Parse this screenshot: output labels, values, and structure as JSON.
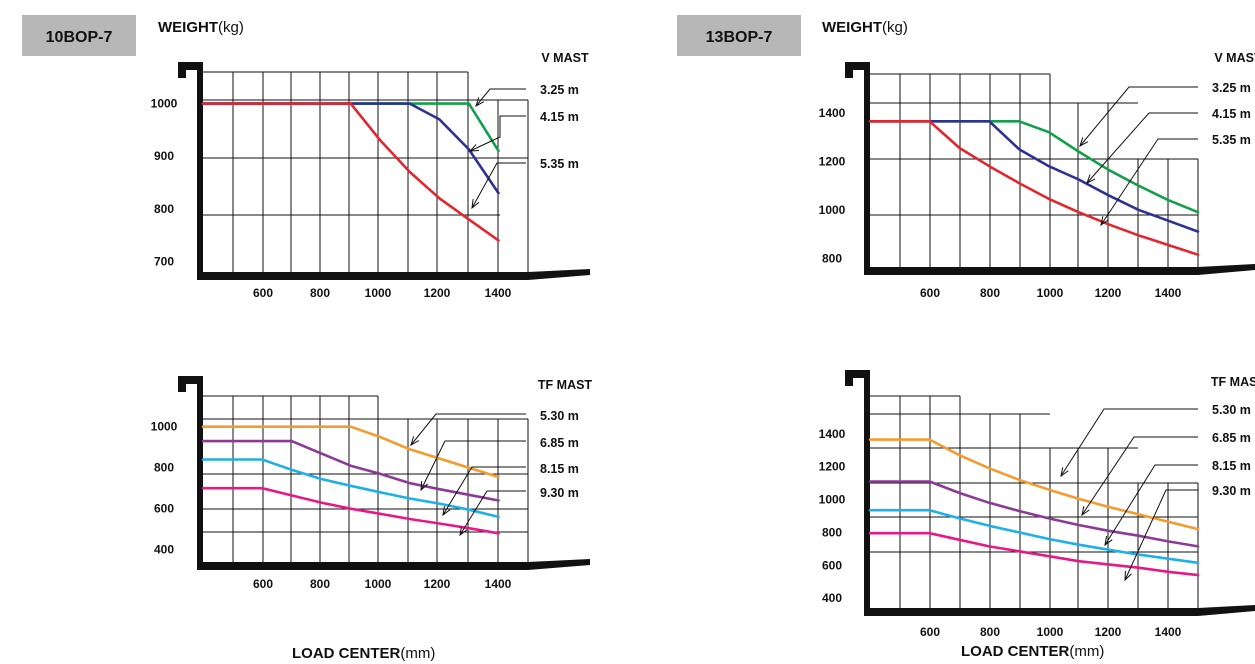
{
  "colors": {
    "frame": "#111111",
    "badge": "#b7b7b7",
    "red": "#e3262e",
    "navy": "#2e3192",
    "green": "#12a04a",
    "orange": "#f59b2e",
    "purple": "#8b3a96",
    "cyan": "#1fb0e8",
    "magenta": "#e6198a"
  },
  "models": [
    {
      "badge": "10BOP-7",
      "weight_title": "WEIGHT",
      "weight_unit": "(kg)",
      "load_title": "LOAD CENTER",
      "load_unit": "(mm)"
    },
    {
      "badge": "13BOP-7",
      "weight_title": "WEIGHT",
      "weight_unit": "(kg)",
      "load_title": "LOAD CENTER",
      "load_unit": "(mm)"
    }
  ],
  "chart_data": [
    {
      "type": "line",
      "model": "10BOP-7",
      "legend_title": "V MAST",
      "xlabel": "LOAD CENTER (mm)",
      "ylabel": "WEIGHT (kg)",
      "x_ticks": [
        "600",
        "800",
        "1000",
        "1200",
        "1400"
      ],
      "y_ticks": [
        "700",
        "800",
        "900",
        "1000"
      ],
      "xlim": [
        400,
        1500
      ],
      "ylim": [
        680,
        1060
      ],
      "series": [
        {
          "name": "3.25 m",
          "color": "green",
          "points": [
            [
              400,
              1000
            ],
            [
              1300,
              1000
            ],
            [
              1400,
              910
            ]
          ]
        },
        {
          "name": "4.15 m",
          "color": "navy",
          "points": [
            [
              400,
              1000
            ],
            [
              1100,
              1000
            ],
            [
              1200,
              970
            ],
            [
              1300,
              913
            ],
            [
              1400,
              830
            ]
          ]
        },
        {
          "name": "5.35 m",
          "color": "red",
          "points": [
            [
              400,
              1000
            ],
            [
              900,
              1000
            ],
            [
              1000,
              930
            ],
            [
              1100,
              870
            ],
            [
              1200,
              820
            ],
            [
              1300,
              780
            ],
            [
              1400,
              740
            ]
          ]
        }
      ]
    },
    {
      "type": "line",
      "model": "10BOP-7",
      "legend_title": "TF MAST",
      "xlabel": "LOAD CENTER (mm)",
      "ylabel": "WEIGHT (kg)",
      "x_ticks": [
        "600",
        "800",
        "1000",
        "1200",
        "1400"
      ],
      "y_ticks": [
        "400",
        "600",
        "800",
        "1000"
      ],
      "xlim": [
        400,
        1500
      ],
      "ylim": [
        340,
        1150
      ],
      "series": [
        {
          "name": "5.30 m",
          "color": "orange",
          "points": [
            [
              400,
              1000
            ],
            [
              900,
              1000
            ],
            [
              1000,
              950
            ],
            [
              1100,
              890
            ],
            [
              1200,
              845
            ],
            [
              1300,
              800
            ],
            [
              1400,
              755
            ]
          ]
        },
        {
          "name": "6.85 m",
          "color": "purple",
          "points": [
            [
              400,
              930
            ],
            [
              700,
              930
            ],
            [
              800,
              870
            ],
            [
              900,
              810
            ],
            [
              1000,
              770
            ],
            [
              1100,
              725
            ],
            [
              1200,
              695
            ],
            [
              1300,
              668
            ],
            [
              1400,
              640
            ]
          ]
        },
        {
          "name": "8.15 m",
          "color": "cyan",
          "points": [
            [
              400,
              840
            ],
            [
              600,
              840
            ],
            [
              700,
              790
            ],
            [
              800,
              745
            ],
            [
              900,
              712
            ],
            [
              1000,
              680
            ],
            [
              1100,
              650
            ],
            [
              1200,
              625
            ],
            [
              1300,
              595
            ],
            [
              1400,
              560
            ]
          ]
        },
        {
          "name": "9.30 m",
          "color": "magenta",
          "points": [
            [
              400,
              700
            ],
            [
              600,
              700
            ],
            [
              700,
              665
            ],
            [
              800,
              630
            ],
            [
              900,
              600
            ],
            [
              1000,
              575
            ],
            [
              1100,
              550
            ],
            [
              1200,
              528
            ],
            [
              1300,
              505
            ],
            [
              1400,
              480
            ]
          ]
        }
      ]
    },
    {
      "type": "line",
      "model": "13BOP-7",
      "legend_title": "V MAST",
      "xlabel": "LOAD CENTER (mm)",
      "ylabel": "WEIGHT (kg)",
      "x_ticks": [
        "600",
        "800",
        "1000",
        "1200",
        "1400"
      ],
      "y_ticks": [
        "800",
        "1000",
        "1200",
        "1400"
      ],
      "xlim": [
        400,
        1500
      ],
      "ylim": [
        760,
        1560
      ],
      "series": [
        {
          "name": "3.25 m",
          "color": "green",
          "points": [
            [
              400,
              1365
            ],
            [
              900,
              1365
            ],
            [
              1000,
              1320
            ],
            [
              1100,
              1240
            ],
            [
              1200,
              1165
            ],
            [
              1300,
              1100
            ],
            [
              1400,
              1040
            ],
            [
              1500,
              990
            ]
          ]
        },
        {
          "name": "4.15 m",
          "color": "navy",
          "points": [
            [
              400,
              1365
            ],
            [
              800,
              1365
            ],
            [
              900,
              1250
            ],
            [
              1000,
              1180
            ],
            [
              1100,
              1125
            ],
            [
              1200,
              1060
            ],
            [
              1300,
              1000
            ],
            [
              1400,
              955
            ],
            [
              1500,
              910
            ]
          ]
        },
        {
          "name": "5.35 m",
          "color": "red",
          "points": [
            [
              400,
              1365
            ],
            [
              600,
              1365
            ],
            [
              700,
              1255
            ],
            [
              800,
              1180
            ],
            [
              900,
              1110
            ],
            [
              1000,
              1045
            ],
            [
              1100,
              990
            ],
            [
              1200,
              940
            ],
            [
              1300,
              895
            ],
            [
              1400,
              855
            ],
            [
              1500,
              815
            ]
          ]
        }
      ]
    },
    {
      "type": "line",
      "model": "13BOP-7",
      "legend_title": "TF MAST",
      "xlabel": "LOAD CENTER (mm)",
      "ylabel": "WEIGHT (kg)",
      "x_ticks": [
        "600",
        "800",
        "1000",
        "1200",
        "1400"
      ],
      "y_ticks": [
        "400",
        "600",
        "800",
        "1000",
        "1200",
        "1400"
      ],
      "xlim": [
        400,
        1500
      ],
      "ylim": [
        340,
        1630
      ],
      "series": [
        {
          "name": "5.30 m",
          "color": "orange",
          "points": [
            [
              400,
              1365
            ],
            [
              600,
              1365
            ],
            [
              700,
              1270
            ],
            [
              800,
              1190
            ],
            [
              900,
              1120
            ],
            [
              1000,
              1060
            ],
            [
              1100,
              1005
            ],
            [
              1200,
              955
            ],
            [
              1300,
              910
            ],
            [
              1400,
              865
            ],
            [
              1500,
              820
            ]
          ]
        },
        {
          "name": "6.85 m",
          "color": "purple",
          "points": [
            [
              400,
              1110
            ],
            [
              600,
              1110
            ],
            [
              700,
              1040
            ],
            [
              800,
              980
            ],
            [
              900,
              930
            ],
            [
              1000,
              885
            ],
            [
              1100,
              845
            ],
            [
              1200,
              810
            ],
            [
              1300,
              780
            ],
            [
              1400,
              745
            ],
            [
              1500,
              715
            ]
          ]
        },
        {
          "name": "8.15 m",
          "color": "cyan",
          "points": [
            [
              400,
              935
            ],
            [
              600,
              935
            ],
            [
              700,
              885
            ],
            [
              800,
              840
            ],
            [
              900,
              800
            ],
            [
              1000,
              760
            ],
            [
              1100,
              725
            ],
            [
              1200,
              695
            ],
            [
              1300,
              665
            ],
            [
              1400,
              640
            ],
            [
              1500,
              615
            ]
          ]
        },
        {
          "name": "9.30 m",
          "color": "magenta",
          "points": [
            [
              400,
              795
            ],
            [
              600,
              795
            ],
            [
              700,
              755
            ],
            [
              800,
              715
            ],
            [
              900,
              685
            ],
            [
              1000,
              655
            ],
            [
              1100,
              625
            ],
            [
              1200,
              605
            ],
            [
              1300,
              585
            ],
            [
              1400,
              560
            ],
            [
              1500,
              540
            ]
          ]
        }
      ]
    }
  ]
}
